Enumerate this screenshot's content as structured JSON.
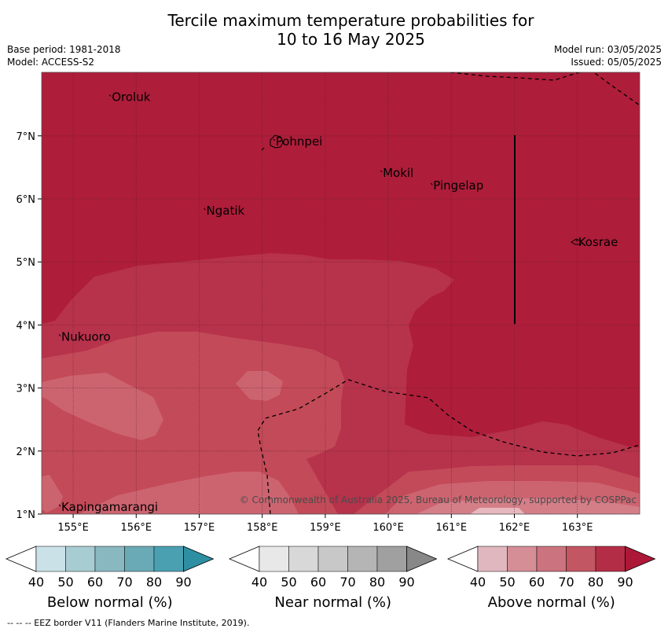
{
  "title_line1": "Tercile maximum temperature probabilities for",
  "title_line2": "10 to 16 May 2025",
  "base_period": "Base period: 1981-2018",
  "model": "Model: ACCESS-S2",
  "model_run": "Model run: 03/05/2025",
  "issued": "Issued: 05/05/2025",
  "places": [
    {
      "name": "Oroluk",
      "lon": 155.6,
      "lat": 7.6
    },
    {
      "name": "Pohnpei",
      "lon": 158.2,
      "lat": 6.9
    },
    {
      "name": "Mokil",
      "lon": 159.9,
      "lat": 6.4
    },
    {
      "name": "Pingelap",
      "lon": 160.7,
      "lat": 6.2
    },
    {
      "name": "Ngatik",
      "lon": 157.1,
      "lat": 5.8
    },
    {
      "name": "Kosrae",
      "lon": 163.0,
      "lat": 5.3
    },
    {
      "name": "Nukuoro",
      "lon": 154.8,
      "lat": 3.8
    },
    {
      "name": "Kapingamarangi",
      "lon": 154.8,
      "lat": 1.1
    }
  ],
  "lon_ticks": [
    "155°E",
    "156°E",
    "157°E",
    "158°E",
    "159°E",
    "160°E",
    "161°E",
    "162°E",
    "163°E"
  ],
  "lat_ticks": [
    "7°N",
    "6°N",
    "5°N",
    "4°N",
    "3°N",
    "2°N",
    "1°N"
  ],
  "copyright": "© Commonwealth of Australia 2025, Bureau of Meteorology, supported by COSPPac",
  "footer": "--  --  -- EEZ border V11 (Flanders Marine Institute, 2019).",
  "legend": {
    "ticks": [
      "40",
      "50",
      "60",
      "70",
      "80",
      "90"
    ],
    "groups": [
      {
        "label": "Below normal (%)",
        "colors": [
          "#c9e1e7",
          "#a7ccd2",
          "#8ab8c1",
          "#6aaab6",
          "#4aa0b1",
          "#2e8fa3"
        ]
      },
      {
        "label": "Near normal (%)",
        "colors": [
          "#e8e8e8",
          "#d8d8d8",
          "#c8c8c8",
          "#b5b5b5",
          "#a0a0a0",
          "#888888"
        ]
      },
      {
        "label": "Above normal (%)",
        "colors": [
          "#e1b7bf",
          "#d58d96",
          "#cb737e",
          "#c35663",
          "#b42d46",
          "#ae1838"
        ]
      }
    ]
  },
  "map_colors": {
    "level90": "#ae1d3a",
    "level80": "#b7324b",
    "level70": "#c34a58",
    "level60": "#cc6470",
    "level50": "#d47e88",
    "level40": "#e8b8bf"
  }
}
